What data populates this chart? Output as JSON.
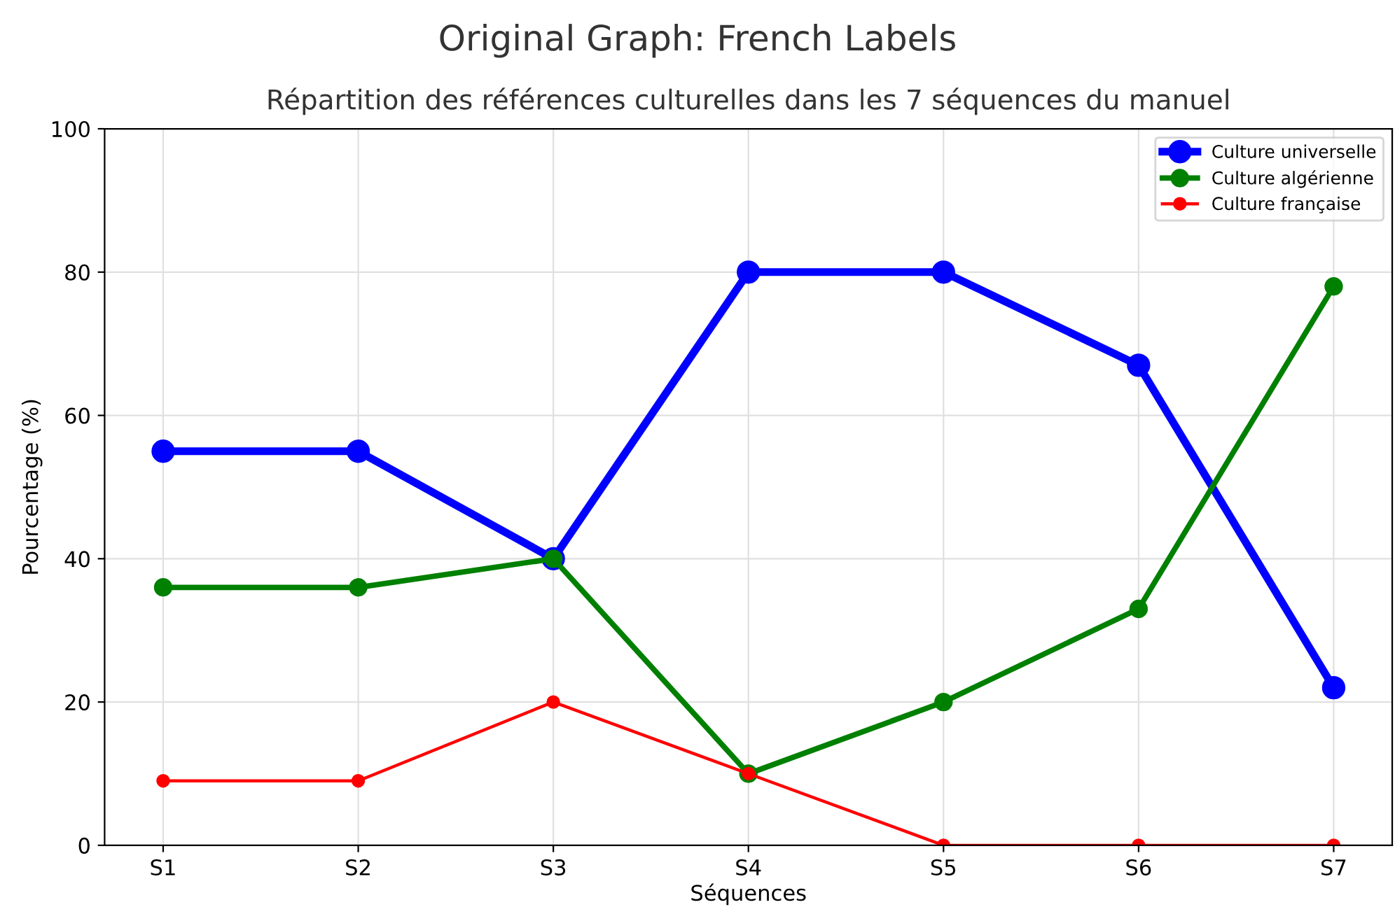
{
  "chart_data": {
    "type": "line",
    "title": "Original Graph: French Labels",
    "subtitle": "Répartition des références culturelles dans les 7 séquences du manuel",
    "xlabel": "Séquences",
    "ylabel": "Pourcentage (%)",
    "categories": [
      "S1",
      "S2",
      "S3",
      "S4",
      "S5",
      "S6",
      "S7"
    ],
    "series": [
      {
        "name": "Culture universelle",
        "color": "#0000ff",
        "values": [
          55,
          55,
          40,
          80,
          80,
          67,
          22
        ]
      },
      {
        "name": "Culture algérienne",
        "color": "#008000",
        "values": [
          36,
          36,
          40,
          10,
          20,
          33,
          78
        ]
      },
      {
        "name": "Culture française",
        "color": "#ff0000",
        "values": [
          9,
          9,
          20,
          10,
          0,
          0,
          0
        ]
      }
    ],
    "ylim": [
      0,
      100
    ],
    "yticks": [
      0,
      20,
      40,
      60,
      80,
      100
    ],
    "grid": true,
    "legend": "top right",
    "marker": "circle",
    "line_style": "solid"
  }
}
